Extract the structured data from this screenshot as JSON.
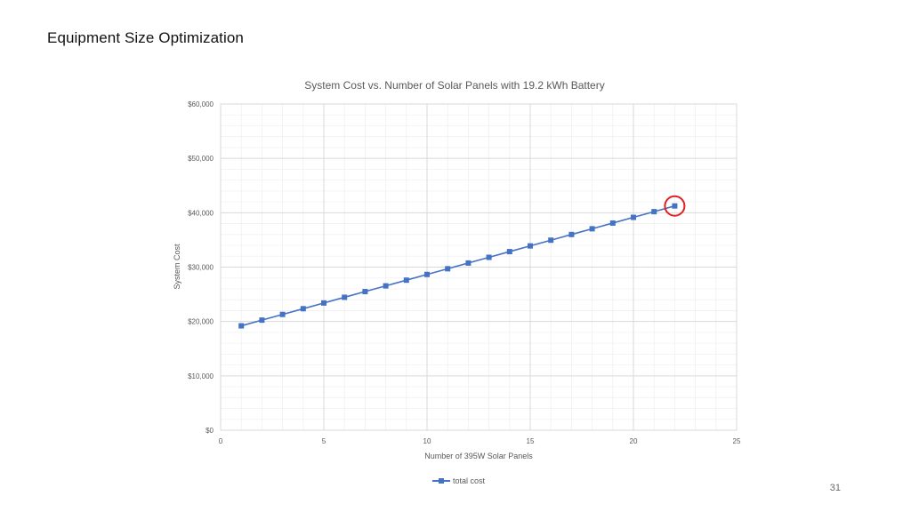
{
  "slide": {
    "title": "Equipment Size Optimization",
    "page_number": "31"
  },
  "colors": {
    "series": "#4472c4",
    "highlight": "#e02020",
    "major_grid": "#d9d9d9",
    "minor_grid": "#f0f0f0"
  },
  "chart_data": {
    "type": "line",
    "title": "System Cost vs. Number of Solar Panels with 19.2 kWh Battery",
    "xlabel": "Number of 395W Solar Panels",
    "ylabel": "System Cost",
    "xlim": [
      0,
      25
    ],
    "ylim": [
      0,
      60000
    ],
    "x_ticks": [
      0,
      5,
      10,
      15,
      20,
      25
    ],
    "x_tick_labels": [
      "0",
      "5",
      "10",
      "15",
      "20",
      "25"
    ],
    "y_ticks": [
      0,
      10000,
      20000,
      30000,
      40000,
      50000,
      60000
    ],
    "y_tick_labels": [
      "$0",
      "$10,000",
      "$20,000",
      "$30,000",
      "$40,000",
      "$50,000",
      "$60,000"
    ],
    "grid": true,
    "legend_position": "bottom",
    "series": [
      {
        "name": "total cost",
        "marker": "square",
        "x": [
          1,
          2,
          3,
          4,
          5,
          6,
          7,
          8,
          9,
          10,
          11,
          12,
          13,
          14,
          15,
          16,
          17,
          18,
          19,
          20,
          21,
          22
        ],
        "values": [
          19200,
          20250,
          21300,
          22350,
          23400,
          24450,
          25500,
          26550,
          27600,
          28650,
          29700,
          30750,
          31800,
          32850,
          33900,
          34950,
          36000,
          37050,
          38100,
          39150,
          40200,
          41250
        ]
      }
    ],
    "annotations": [
      {
        "type": "circle",
        "series": "total cost",
        "x": 22,
        "y": 41250
      }
    ]
  }
}
